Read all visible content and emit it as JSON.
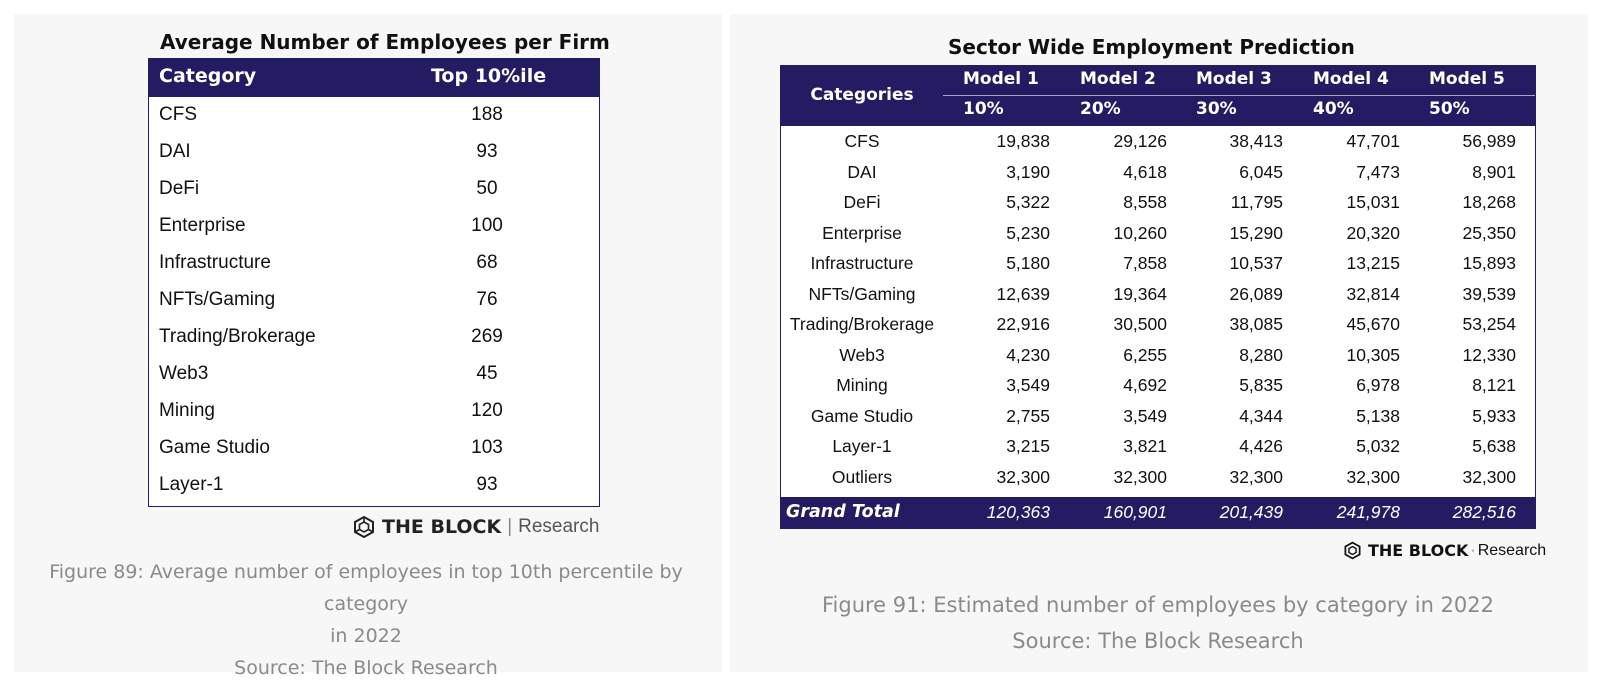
{
  "left": {
    "title": "Average Number of Employees per Firm",
    "headers": [
      "Category",
      "Top 10%ile"
    ],
    "rows": [
      [
        "CFS",
        "188"
      ],
      [
        "DAI",
        "93"
      ],
      [
        "DeFi",
        "50"
      ],
      [
        "Enterprise",
        "100"
      ],
      [
        "Infrastructure",
        "68"
      ],
      [
        "NFTs/Gaming",
        "76"
      ],
      [
        "Trading/Brokerage",
        "269"
      ],
      [
        "Web3",
        "45"
      ],
      [
        "Mining",
        "120"
      ],
      [
        "Game Studio",
        "103"
      ],
      [
        "Layer-1",
        "93"
      ]
    ],
    "logo": {
      "name": "THE BLOCK",
      "sep": "|",
      "research": "Research"
    },
    "caption": {
      "line1": "Figure 89: Average number of employees in top 10th percentile by category",
      "line2": "in 2022",
      "line3": "Source: The Block Research"
    }
  },
  "right": {
    "title": "Sector Wide Employment Prediction",
    "cat_header": "Categories",
    "models": [
      "Model 1",
      "Model 2",
      "Model 3",
      "Model 4",
      "Model 5"
    ],
    "pcts": [
      "10%",
      "20%",
      "30%",
      "40%",
      "50%"
    ],
    "rows": [
      [
        "CFS",
        "19,838",
        "29,126",
        "38,413",
        "47,701",
        "56,989"
      ],
      [
        "DAI",
        "3,190",
        "4,618",
        "6,045",
        "7,473",
        "8,901"
      ],
      [
        "DeFi",
        "5,322",
        "8,558",
        "11,795",
        "15,031",
        "18,268"
      ],
      [
        "Enterprise",
        "5,230",
        "10,260",
        "15,290",
        "20,320",
        "25,350"
      ],
      [
        "Infrastructure",
        "5,180",
        "7,858",
        "10,537",
        "13,215",
        "15,893"
      ],
      [
        "NFTs/Gaming",
        "12,639",
        "19,364",
        "26,089",
        "32,814",
        "39,539"
      ],
      [
        "Trading/Brokerage",
        "22,916",
        "30,500",
        "38,085",
        "45,670",
        "53,254"
      ],
      [
        "Web3",
        "4,230",
        "6,255",
        "8,280",
        "10,305",
        "12,330"
      ],
      [
        "Mining",
        "3,549",
        "4,692",
        "5,835",
        "6,978",
        "8,121"
      ],
      [
        "Game Studio",
        "2,755",
        "3,549",
        "4,344",
        "5,138",
        "5,933"
      ],
      [
        "Layer-1",
        "3,215",
        "3,821",
        "4,426",
        "5,032",
        "5,638"
      ],
      [
        "Outliers",
        "32,300",
        "32,300",
        "32,300",
        "32,300",
        "32,300"
      ]
    ],
    "total": [
      "Grand Total",
      "120,363",
      "160,901",
      "201,439",
      "241,978",
      "282,516"
    ],
    "logo": {
      "name": "THE BLOCK",
      "sep": "·",
      "research": "Research"
    },
    "caption": {
      "line1": "Figure 91: Estimated number of employees by category in 2022",
      "line2": "Source: The Block Research"
    }
  },
  "colors": {
    "navy": "#241c63",
    "caption_gray": "#8a8a8a",
    "panel_bg": "#f7f7f8"
  },
  "icons": {
    "logo_mark": "hexagon-cube-icon"
  }
}
